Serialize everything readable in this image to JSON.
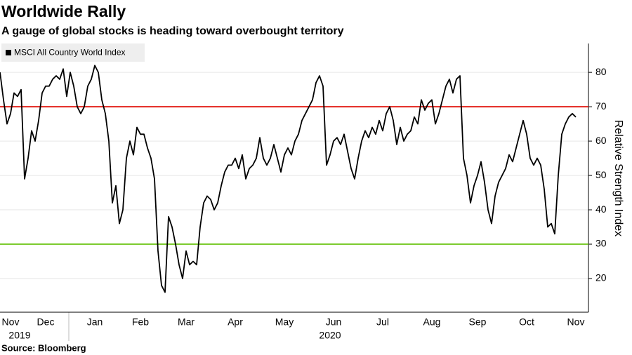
{
  "chart_data": {
    "type": "line",
    "title": "Worldwide Rally",
    "subtitle": "A gauge of global stocks is heading toward overbought territory",
    "y_label": "Relative Strength Index",
    "source": "Source: Bloomberg",
    "year_labels": [
      "2019",
      "2020"
    ],
    "categories": [
      null,
      null,
      null,
      "Nov",
      null,
      null,
      null,
      null,
      null,
      null,
      null,
      null,
      null,
      "Dec",
      null,
      null,
      null,
      null,
      null,
      null,
      null,
      null,
      null,
      null,
      null,
      null,
      null,
      "Jan",
      null,
      null,
      null,
      null,
      null,
      null,
      null,
      null,
      null,
      null,
      null,
      null,
      "Feb",
      null,
      null,
      null,
      null,
      null,
      null,
      null,
      null,
      null,
      null,
      null,
      null,
      "Mar",
      null,
      null,
      null,
      null,
      null,
      null,
      null,
      null,
      null,
      null,
      null,
      null,
      null,
      "Apr",
      null,
      null,
      null,
      null,
      null,
      null,
      null,
      null,
      null,
      null,
      null,
      null,
      null,
      "May",
      null,
      null,
      null,
      null,
      null,
      null,
      null,
      null,
      null,
      null,
      null,
      null,
      null,
      "Jun",
      null,
      null,
      null,
      null,
      null,
      null,
      null,
      null,
      null,
      null,
      null,
      null,
      null,
      "Jul",
      null,
      null,
      null,
      null,
      null,
      null,
      null,
      null,
      null,
      null,
      null,
      null,
      null,
      "Aug",
      null,
      null,
      null,
      null,
      null,
      null,
      null,
      null,
      null,
      null,
      null,
      null,
      "Sep",
      null,
      null,
      null,
      null,
      null,
      null,
      null,
      null,
      null,
      null,
      null,
      null,
      null,
      "Oct",
      null,
      null,
      null,
      null,
      null,
      null,
      null,
      null,
      null,
      null,
      null,
      null,
      null,
      "Nov"
    ],
    "series": [
      {
        "name": "MSCI All Country World Index",
        "color": "#000000",
        "values": [
          80,
          72,
          65,
          68,
          74,
          73,
          75,
          49,
          55,
          63,
          60,
          66,
          74,
          76,
          76,
          78,
          79,
          78,
          81,
          73,
          80,
          76,
          70,
          68,
          70,
          76,
          78,
          82,
          80,
          72,
          68,
          60,
          42,
          47,
          36,
          40,
          55,
          60,
          56,
          64,
          62,
          62,
          58,
          55,
          49,
          28,
          18,
          16,
          38,
          35,
          30,
          24,
          20,
          28,
          24,
          25,
          24,
          35,
          42,
          44,
          43,
          40,
          42,
          47,
          51,
          53,
          53,
          55,
          52,
          56,
          49,
          52,
          53,
          55,
          61,
          55,
          53,
          55,
          59,
          55,
          51,
          56,
          58,
          56,
          60,
          62,
          66,
          68,
          70,
          72,
          77,
          79,
          76,
          53,
          56,
          60,
          61,
          59,
          62,
          57,
          52,
          49,
          55,
          60,
          63,
          61,
          64,
          62,
          66,
          63,
          68,
          70,
          66,
          59,
          64,
          60,
          62,
          63,
          67,
          65,
          72,
          69,
          71,
          72,
          65,
          68,
          72,
          76,
          78,
          74,
          78,
          79,
          55,
          50,
          42,
          47,
          50,
          54,
          48,
          40,
          36,
          44,
          48,
          50,
          52,
          56,
          54,
          58,
          62,
          66,
          62,
          55,
          53,
          55,
          53,
          46,
          35,
          36,
          33,
          50,
          62,
          65,
          67,
          68,
          67
        ]
      }
    ],
    "hlines": [
      {
        "value": 70,
        "color": "#e3231b"
      },
      {
        "value": 30,
        "color": "#7ccb2f"
      }
    ],
    "ylim": [
      10.2,
      88.4
    ],
    "yticks": [
      20,
      30,
      40,
      50,
      60,
      70,
      80
    ],
    "grid": true
  }
}
